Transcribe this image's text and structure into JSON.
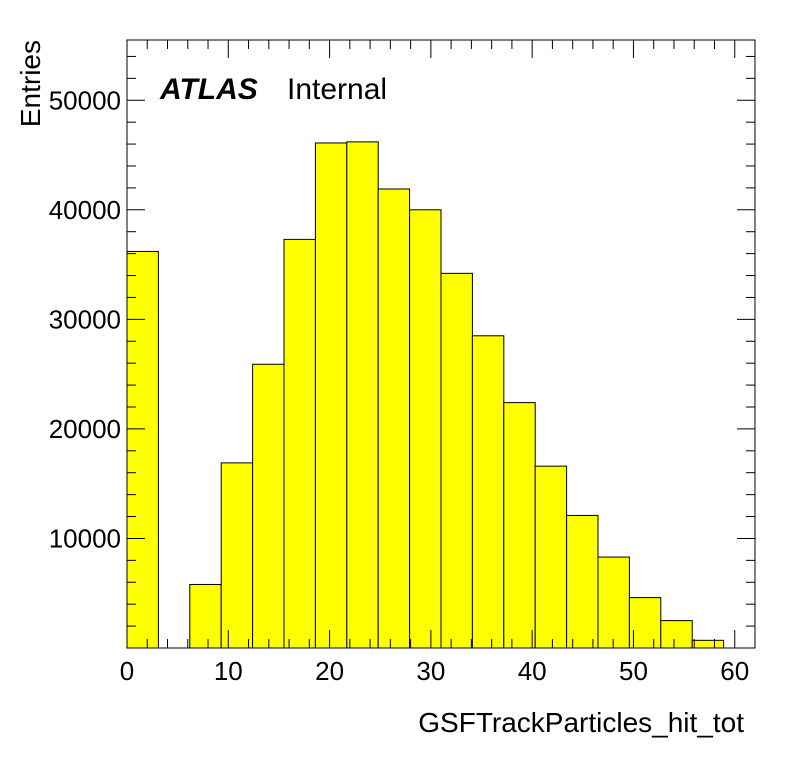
{
  "chart_data": {
    "type": "bar",
    "style": "histogram",
    "fill_color": "#ffff00",
    "edge_color": "#000000",
    "xlabel": "GSFTrackParticles_hit_tot",
    "ylabel": "Entries",
    "label_bold": "ATLAS",
    "label_text": "Internal",
    "xlim": [
      0,
      62
    ],
    "ylim": [
      0,
      55500
    ],
    "x_ticks": [
      0,
      10,
      20,
      30,
      40,
      50,
      60
    ],
    "y_ticks": [
      10000,
      20000,
      30000,
      40000,
      50000
    ],
    "bin_width": 3.1,
    "bin_edges_start": 0,
    "values": [
      36200,
      0,
      5800,
      16900,
      25900,
      37300,
      46100,
      46200,
      41900,
      40000,
      34200,
      28500,
      22400,
      16600,
      12100,
      8300,
      4600,
      2500,
      700,
      0
    ]
  }
}
